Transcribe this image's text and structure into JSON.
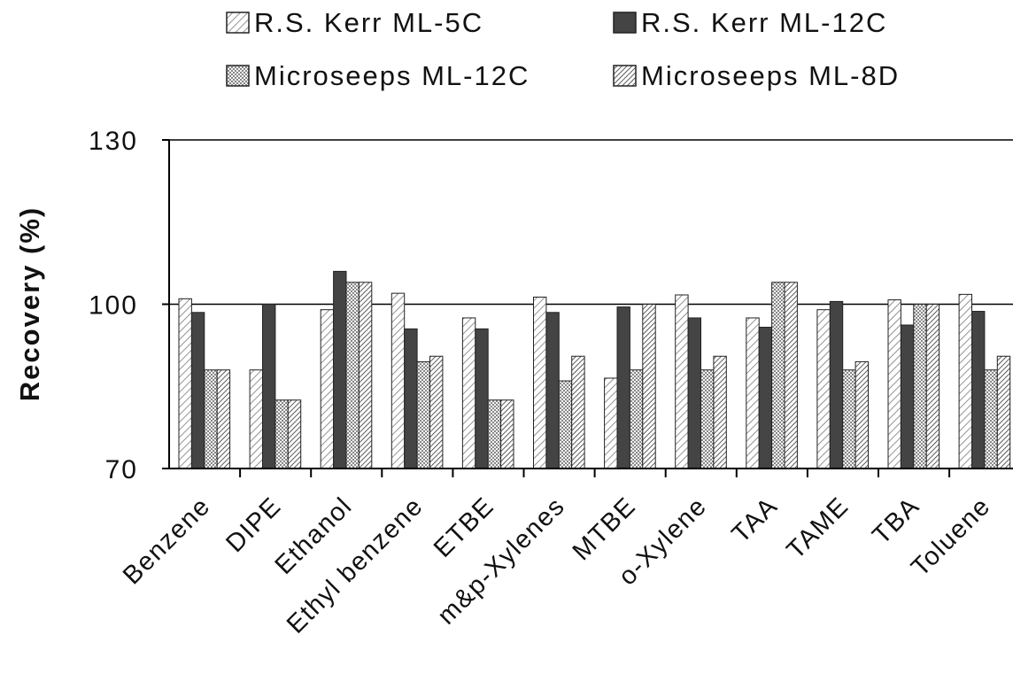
{
  "chart_data": {
    "type": "bar",
    "title": "",
    "xlabel": "",
    "ylabel": "Recovery (%)",
    "ylim": [
      70,
      130
    ],
    "yticks": [
      "130",
      "100",
      "70"
    ],
    "grid": "horizontal lines at 100 and 130",
    "legend_position": "top",
    "categories": [
      "Benzene",
      "DIPE",
      "Ethanol",
      "Ethyl benzene",
      "ETBE",
      "m&p-Xylenes",
      "MTBE",
      "o-Xylene",
      "TAA",
      "TAME",
      "TBA",
      "Toluene"
    ],
    "series": [
      {
        "name": "R.S. Kerr ML-5C",
        "pattern": "diagonal-light",
        "values": [
          101,
          88,
          99,
          102,
          97.5,
          101.3,
          86.5,
          101.7,
          97.5,
          99,
          100.8,
          101.8
        ]
      },
      {
        "name": "R.S. Kerr ML-12C",
        "pattern": "solid-dark",
        "values": [
          98.5,
          100,
          106,
          95.5,
          95.5,
          98.5,
          99.5,
          97.5,
          95.8,
          100.5,
          96.2,
          98.7
        ]
      },
      {
        "name": "Microseeps ML-12C",
        "pattern": "checker",
        "values": [
          88,
          82.5,
          104,
          89.5,
          82.5,
          86,
          88,
          88,
          104,
          88,
          100,
          88
        ]
      },
      {
        "name": "Microseeps ML-8D",
        "pattern": "diagonal-dense",
        "values": [
          88,
          82.5,
          104,
          90.5,
          82.5,
          90.5,
          100,
          90.5,
          104,
          89.5,
          100,
          90.5
        ]
      }
    ]
  },
  "colors": {
    "bar_stroke": "#222222",
    "solid_bar": "#444444",
    "axis": "#000000"
  }
}
